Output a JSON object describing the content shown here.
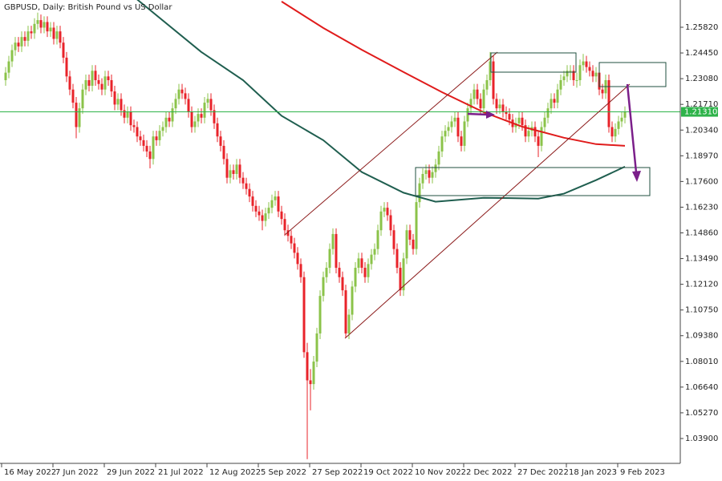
{
  "chart_data": {
    "type": "candlestick",
    "title": "GBPUSD, Daily:  British Pound vs US Dollar",
    "up_color": "#8bc34a",
    "down_color": "#e8232a",
    "xlim": [
      -1.75,
      210.25
    ],
    "ylim": [
      1.02575,
      1.27273
    ],
    "xticks": [
      {
        "value": 0,
        "label": "16 May 2022"
      },
      {
        "value": 16,
        "label": "7 Jun 2022"
      },
      {
        "value": 32,
        "label": "29 Jun 2022"
      },
      {
        "value": 48,
        "label": "21 Jul 2022"
      },
      {
        "value": 64,
        "label": "12 Aug 2022"
      },
      {
        "value": 80,
        "label": "5 Sep 2022"
      },
      {
        "value": 96,
        "label": "27 Sep 2022"
      },
      {
        "value": 112,
        "label": "19 Oct 2022"
      },
      {
        "value": 128,
        "label": "10 Nov 2022"
      },
      {
        "value": 144,
        "label": "2 Dec 2022"
      },
      {
        "value": 160,
        "label": "27 Dec 2022"
      },
      {
        "value": 176,
        "label": "18 Jan 2023"
      },
      {
        "value": 192,
        "label": "9 Feb 2023"
      }
    ],
    "yticks": [
      {
        "value": 1.2582,
        "label": "1.25820"
      },
      {
        "value": 1.2445,
        "label": "1.24450"
      },
      {
        "value": 1.2308,
        "label": "1.23080"
      },
      {
        "value": 1.2171,
        "label": "1.21710"
      },
      {
        "value": 1.2034,
        "label": "1.20340"
      },
      {
        "value": 1.1897,
        "label": "1.18970"
      },
      {
        "value": 1.176,
        "label": "1.17600"
      },
      {
        "value": 1.1623,
        "label": "1.16230"
      },
      {
        "value": 1.1486,
        "label": "1.14860"
      },
      {
        "value": 1.1349,
        "label": "1.13490"
      },
      {
        "value": 1.1212,
        "label": "1.12120"
      },
      {
        "value": 1.1075,
        "label": "1.10750"
      },
      {
        "value": 1.0938,
        "label": "1.09380"
      },
      {
        "value": 1.0801,
        "label": "1.08010"
      },
      {
        "value": 1.0664,
        "label": "1.06640"
      },
      {
        "value": 1.0527,
        "label": "1.05270"
      },
      {
        "value": 1.039,
        "label": "1.03900"
      }
    ],
    "current_price": {
      "value": 1.2131,
      "label": "1.21310",
      "color": "#2eb34a"
    },
    "series": [
      {
        "color": "#1f5e4f",
        "x": [
          41,
          61,
          74,
          86,
          99,
          111,
          124,
          134,
          149,
          166,
          174,
          184,
          193
        ],
        "values": [
          1.273,
          1.245,
          1.23,
          1.211,
          1.198,
          1.181,
          1.17,
          1.1652,
          1.1673,
          1.1669,
          1.1695,
          1.1767,
          1.1839
        ]
      },
      {
        "color": "#e01b1b",
        "x": [
          86,
          99,
          111,
          124,
          136,
          149,
          161,
          174,
          184,
          193
        ],
        "values": [
          1.2719,
          1.2578,
          1.2462,
          1.2343,
          1.2236,
          1.2129,
          1.2052,
          1.1993,
          1.1959,
          1.195
        ]
      }
    ],
    "ohlc": [
      [
        1.23,
        1.237,
        1.227,
        1.234
      ],
      [
        1.234,
        1.243,
        1.231,
        1.24
      ],
      [
        1.24,
        1.249,
        1.237,
        1.246
      ],
      [
        1.246,
        1.253,
        1.243,
        1.25
      ],
      [
        1.25,
        1.253,
        1.245,
        1.248
      ],
      [
        1.248,
        1.256,
        1.245,
        1.253
      ],
      [
        1.253,
        1.256,
        1.248,
        1.251
      ],
      [
        1.251,
        1.259,
        1.248,
        1.256
      ],
      [
        1.256,
        1.259,
        1.252,
        1.255
      ],
      [
        1.255,
        1.263,
        1.252,
        1.26
      ],
      [
        1.26,
        1.266,
        1.257,
        1.262
      ],
      [
        1.262,
        1.265,
        1.255,
        1.258
      ],
      [
        1.258,
        1.264,
        1.255,
        1.261
      ],
      [
        1.261,
        1.264,
        1.253,
        1.256
      ],
      [
        1.256,
        1.261,
        1.253,
        1.258
      ],
      [
        1.258,
        1.261,
        1.249,
        1.252
      ],
      [
        1.252,
        1.259,
        1.249,
        1.256
      ],
      [
        1.256,
        1.259,
        1.247,
        1.25
      ],
      [
        1.25,
        1.253,
        1.239,
        1.242
      ],
      [
        1.242,
        1.245,
        1.229,
        1.232
      ],
      [
        1.232,
        1.235,
        1.222,
        1.225
      ],
      [
        1.225,
        1.228,
        1.215,
        1.218
      ],
      [
        1.218,
        1.221,
        1.199,
        1.205
      ],
      [
        1.205,
        1.218,
        1.202,
        1.215
      ],
      [
        1.215,
        1.228,
        1.212,
        1.225
      ],
      [
        1.225,
        1.233,
        1.222,
        1.23
      ],
      [
        1.23,
        1.233,
        1.224,
        1.227
      ],
      [
        1.227,
        1.238,
        1.224,
        1.235
      ],
      [
        1.235,
        1.238,
        1.227,
        1.23
      ],
      [
        1.23,
        1.233,
        1.225,
        1.228
      ],
      [
        1.228,
        1.231,
        1.222,
        1.225
      ],
      [
        1.225,
        1.235,
        1.222,
        1.232
      ],
      [
        1.232,
        1.235,
        1.227,
        1.23
      ],
      [
        1.23,
        1.233,
        1.221,
        1.224
      ],
      [
        1.224,
        1.227,
        1.214,
        1.217
      ],
      [
        1.217,
        1.223,
        1.214,
        1.22
      ],
      [
        1.22,
        1.223,
        1.211,
        1.214
      ],
      [
        1.214,
        1.217,
        1.207,
        1.21
      ],
      [
        1.21,
        1.216,
        1.207,
        1.213
      ],
      [
        1.213,
        1.216,
        1.203,
        1.206
      ],
      [
        1.206,
        1.209,
        1.202,
        1.205
      ],
      [
        1.205,
        1.208,
        1.197,
        1.2
      ],
      [
        1.2,
        1.203,
        1.195,
        1.198
      ],
      [
        1.198,
        1.201,
        1.192,
        1.195
      ],
      [
        1.195,
        1.198,
        1.189,
        1.192
      ],
      [
        1.192,
        1.195,
        1.183,
        1.188
      ],
      [
        1.188,
        1.203,
        1.185,
        1.2
      ],
      [
        1.2,
        1.203,
        1.195,
        1.198
      ],
      [
        1.198,
        1.206,
        1.195,
        1.203
      ],
      [
        1.203,
        1.208,
        1.2,
        1.205
      ],
      [
        1.205,
        1.213,
        1.202,
        1.21
      ],
      [
        1.21,
        1.213,
        1.205,
        1.208
      ],
      [
        1.208,
        1.218,
        1.205,
        1.215
      ],
      [
        1.215,
        1.223,
        1.212,
        1.22
      ],
      [
        1.22,
        1.228,
        1.217,
        1.225
      ],
      [
        1.225,
        1.228,
        1.22,
        1.223
      ],
      [
        1.223,
        1.226,
        1.217,
        1.22
      ],
      [
        1.22,
        1.223,
        1.21,
        1.213
      ],
      [
        1.213,
        1.216,
        1.202,
        1.205
      ],
      [
        1.205,
        1.211,
        1.202,
        1.208
      ],
      [
        1.208,
        1.215,
        1.205,
        1.212
      ],
      [
        1.212,
        1.215,
        1.207,
        1.21
      ],
      [
        1.21,
        1.221,
        1.207,
        1.218
      ],
      [
        1.218,
        1.223,
        1.215,
        1.22
      ],
      [
        1.22,
        1.223,
        1.211,
        1.214
      ],
      [
        1.214,
        1.217,
        1.204,
        1.207
      ],
      [
        1.207,
        1.21,
        1.197,
        1.2
      ],
      [
        1.2,
        1.203,
        1.192,
        1.195
      ],
      [
        1.195,
        1.198,
        1.185,
        1.188
      ],
      [
        1.188,
        1.191,
        1.175,
        1.178
      ],
      [
        1.178,
        1.185,
        1.175,
        1.182
      ],
      [
        1.182,
        1.185,
        1.177,
        1.18
      ],
      [
        1.18,
        1.188,
        1.177,
        1.185
      ],
      [
        1.185,
        1.188,
        1.175,
        1.178
      ],
      [
        1.178,
        1.181,
        1.172,
        1.175
      ],
      [
        1.175,
        1.178,
        1.169,
        1.172
      ],
      [
        1.172,
        1.175,
        1.165,
        1.168
      ],
      [
        1.168,
        1.171,
        1.16,
        1.163
      ],
      [
        1.163,
        1.166,
        1.157,
        1.16
      ],
      [
        1.16,
        1.163,
        1.155,
        1.158
      ],
      [
        1.158,
        1.161,
        1.15,
        1.155
      ],
      [
        1.155,
        1.162,
        1.152,
        1.159
      ],
      [
        1.159,
        1.165,
        1.156,
        1.162
      ],
      [
        1.162,
        1.169,
        1.159,
        1.166
      ],
      [
        1.166,
        1.171,
        1.163,
        1.168
      ],
      [
        1.168,
        1.171,
        1.157,
        1.16
      ],
      [
        1.16,
        1.163,
        1.153,
        1.156
      ],
      [
        1.156,
        1.159,
        1.147,
        1.15
      ],
      [
        1.15,
        1.153,
        1.144,
        1.147
      ],
      [
        1.147,
        1.15,
        1.14,
        1.143
      ],
      [
        1.143,
        1.146,
        1.135,
        1.138
      ],
      [
        1.138,
        1.141,
        1.129,
        1.132
      ],
      [
        1.132,
        1.135,
        1.122,
        1.125
      ],
      [
        1.125,
        1.128,
        1.082,
        1.085
      ],
      [
        1.085,
        1.09,
        1.028,
        1.07
      ],
      [
        1.07,
        1.076,
        1.054,
        1.068
      ],
      [
        1.068,
        1.083,
        1.065,
        1.08
      ],
      [
        1.08,
        1.098,
        1.077,
        1.095
      ],
      [
        1.095,
        1.118,
        1.092,
        1.115
      ],
      [
        1.115,
        1.128,
        1.112,
        1.125
      ],
      [
        1.125,
        1.133,
        1.122,
        1.13
      ],
      [
        1.13,
        1.143,
        1.127,
        1.14
      ],
      [
        1.14,
        1.151,
        1.137,
        1.148
      ],
      [
        1.148,
        1.151,
        1.127,
        1.13
      ],
      [
        1.13,
        1.133,
        1.122,
        1.125
      ],
      [
        1.125,
        1.128,
        1.115,
        1.118
      ],
      [
        1.118,
        1.121,
        1.093,
        1.095
      ],
      [
        1.095,
        1.108,
        1.092,
        1.105
      ],
      [
        1.105,
        1.123,
        1.102,
        1.12
      ],
      [
        1.12,
        1.133,
        1.117,
        1.13
      ],
      [
        1.13,
        1.138,
        1.127,
        1.135
      ],
      [
        1.135,
        1.138,
        1.127,
        1.13
      ],
      [
        1.13,
        1.133,
        1.122,
        1.125
      ],
      [
        1.125,
        1.135,
        1.122,
        1.132
      ],
      [
        1.132,
        1.14,
        1.129,
        1.137
      ],
      [
        1.137,
        1.143,
        1.134,
        1.14
      ],
      [
        1.14,
        1.153,
        1.137,
        1.15
      ],
      [
        1.15,
        1.163,
        1.147,
        1.16
      ],
      [
        1.16,
        1.165,
        1.157,
        1.162
      ],
      [
        1.162,
        1.165,
        1.155,
        1.158
      ],
      [
        1.158,
        1.161,
        1.147,
        1.15
      ],
      [
        1.15,
        1.153,
        1.137,
        1.14
      ],
      [
        1.14,
        1.143,
        1.127,
        1.13
      ],
      [
        1.13,
        1.133,
        1.115,
        1.118
      ],
      [
        1.118,
        1.138,
        1.115,
        1.135
      ],
      [
        1.135,
        1.153,
        1.132,
        1.15
      ],
      [
        1.15,
        1.153,
        1.142,
        1.145
      ],
      [
        1.145,
        1.148,
        1.137,
        1.14
      ],
      [
        1.14,
        1.168,
        1.137,
        1.165
      ],
      [
        1.165,
        1.178,
        1.162,
        1.175
      ],
      [
        1.175,
        1.183,
        1.172,
        1.18
      ],
      [
        1.18,
        1.185,
        1.177,
        1.182
      ],
      [
        1.182,
        1.185,
        1.175,
        1.178
      ],
      [
        1.178,
        1.184,
        1.175,
        1.181
      ],
      [
        1.181,
        1.188,
        1.178,
        1.185
      ],
      [
        1.185,
        1.195,
        1.182,
        1.192
      ],
      [
        1.192,
        1.203,
        1.189,
        1.2
      ],
      [
        1.2,
        1.206,
        1.197,
        1.203
      ],
      [
        1.203,
        1.208,
        1.2,
        1.205
      ],
      [
        1.205,
        1.211,
        1.202,
        1.208
      ],
      [
        1.208,
        1.213,
        1.205,
        1.21
      ],
      [
        1.21,
        1.213,
        1.197,
        1.2
      ],
      [
        1.2,
        1.203,
        1.192,
        1.195
      ],
      [
        1.195,
        1.211,
        1.192,
        1.208
      ],
      [
        1.208,
        1.218,
        1.205,
        1.215
      ],
      [
        1.215,
        1.223,
        1.212,
        1.22
      ],
      [
        1.22,
        1.228,
        1.217,
        1.225
      ],
      [
        1.225,
        1.228,
        1.217,
        1.22
      ],
      [
        1.22,
        1.223,
        1.212,
        1.215
      ],
      [
        1.215,
        1.228,
        1.212,
        1.225
      ],
      [
        1.225,
        1.233,
        1.222,
        1.23
      ],
      [
        1.23,
        1.245,
        1.227,
        1.24
      ],
      [
        1.24,
        1.243,
        1.217,
        1.22
      ],
      [
        1.22,
        1.223,
        1.212,
        1.215
      ],
      [
        1.215,
        1.22,
        1.212,
        1.217
      ],
      [
        1.217,
        1.22,
        1.21,
        1.213
      ],
      [
        1.213,
        1.216,
        1.209,
        1.212
      ],
      [
        1.212,
        1.215,
        1.206,
        1.209
      ],
      [
        1.209,
        1.212,
        1.202,
        1.205
      ],
      [
        1.205,
        1.21,
        1.202,
        1.207
      ],
      [
        1.207,
        1.213,
        1.204,
        1.21
      ],
      [
        1.21,
        1.213,
        1.203,
        1.206
      ],
      [
        1.206,
        1.209,
        1.197,
        1.2
      ],
      [
        1.2,
        1.206,
        1.197,
        1.203
      ],
      [
        1.203,
        1.208,
        1.2,
        1.205
      ],
      [
        1.205,
        1.208,
        1.197,
        1.2
      ],
      [
        1.2,
        1.203,
        1.189,
        1.195
      ],
      [
        1.195,
        1.208,
        1.192,
        1.205
      ],
      [
        1.205,
        1.213,
        1.202,
        1.21
      ],
      [
        1.21,
        1.218,
        1.207,
        1.215
      ],
      [
        1.215,
        1.223,
        1.212,
        1.22
      ],
      [
        1.22,
        1.223,
        1.215,
        1.218
      ],
      [
        1.218,
        1.228,
        1.215,
        1.225
      ],
      [
        1.225,
        1.233,
        1.222,
        1.23
      ],
      [
        1.23,
        1.235,
        1.227,
        1.232
      ],
      [
        1.232,
        1.238,
        1.229,
        1.235
      ],
      [
        1.235,
        1.238,
        1.23,
        1.235
      ],
      [
        1.235,
        1.238,
        1.227,
        1.23
      ],
      [
        1.23,
        1.234,
        1.226,
        1.23
      ],
      [
        1.23,
        1.241,
        1.227,
        1.238
      ],
      [
        1.238,
        1.244,
        1.235,
        1.24
      ],
      [
        1.24,
        1.243,
        1.234,
        1.237
      ],
      [
        1.237,
        1.24,
        1.232,
        1.235
      ],
      [
        1.235,
        1.238,
        1.229,
        1.232
      ],
      [
        1.232,
        1.237,
        1.229,
        1.234
      ],
      [
        1.234,
        1.237,
        1.222,
        1.225
      ],
      [
        1.225,
        1.228,
        1.22,
        1.223
      ],
      [
        1.223,
        1.233,
        1.22,
        1.23
      ],
      [
        1.23,
        1.233,
        1.202,
        1.205
      ],
      [
        1.205,
        1.208,
        1.197,
        1.2
      ],
      [
        1.2,
        1.207,
        1.197,
        1.204
      ],
      [
        1.204,
        1.211,
        1.201,
        1.208
      ],
      [
        1.208,
        1.213,
        1.205,
        1.21
      ],
      [
        1.21,
        1.216,
        1.207,
        1.213
      ]
    ]
  }
}
